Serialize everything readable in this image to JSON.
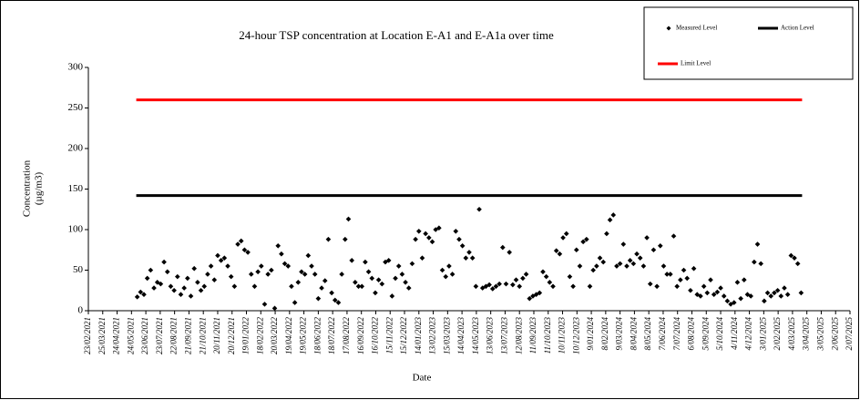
{
  "chart_data": {
    "type": "scatter",
    "title": "24-hour TSP concentration at Location E-A1 and E-A1a over time",
    "xlabel": "Date",
    "ylabel": [
      "Concentration",
      "(µg/m3)"
    ],
    "xlim": [
      "2021-02-23",
      "2025-07-02"
    ],
    "ylim": [
      0,
      300
    ],
    "yticks": [
      0,
      50,
      100,
      150,
      200,
      250,
      300
    ],
    "xticks": [
      {
        "value": "2021-02-23",
        "label": "23/02/2021"
      },
      {
        "value": "2021-03-25",
        "label": "25/03/2021"
      },
      {
        "value": "2021-04-24",
        "label": "24/04/2021"
      },
      {
        "value": "2021-05-24",
        "label": "24/05/2021"
      },
      {
        "value": "2021-06-23",
        "label": "23/06/2021"
      },
      {
        "value": "2021-07-23",
        "label": "23/07/2021"
      },
      {
        "value": "2021-08-22",
        "label": "22/08/2021"
      },
      {
        "value": "2021-09-21",
        "label": "21/09/2021"
      },
      {
        "value": "2021-10-21",
        "label": "21/10/2021"
      },
      {
        "value": "2021-11-20",
        "label": "20/11/2021"
      },
      {
        "value": "2021-12-20",
        "label": "20/12/2021"
      },
      {
        "value": "2022-01-19",
        "label": "19/01/2022"
      },
      {
        "value": "2022-02-18",
        "label": "18/02/2022"
      },
      {
        "value": "2022-03-20",
        "label": "20/03/2022"
      },
      {
        "value": "2022-04-19",
        "label": "19/04/2022"
      },
      {
        "value": "2022-05-19",
        "label": "19/05/2022"
      },
      {
        "value": "2022-06-18",
        "label": "18/06/2022"
      },
      {
        "value": "2022-07-18",
        "label": "18/07/2022"
      },
      {
        "value": "2022-08-17",
        "label": "17/08/2022"
      },
      {
        "value": "2022-09-16",
        "label": "16/09/2022"
      },
      {
        "value": "2022-10-16",
        "label": "16/10/2022"
      },
      {
        "value": "2022-11-15",
        "label": "15/11/2022"
      },
      {
        "value": "2022-12-15",
        "label": "15/12/2022"
      },
      {
        "value": "2023-01-14",
        "label": "14/01/2023"
      },
      {
        "value": "2023-02-13",
        "label": "13/02/2023"
      },
      {
        "value": "2023-03-15",
        "label": "15/03/2023"
      },
      {
        "value": "2023-04-14",
        "label": "14/04/2023"
      },
      {
        "value": "2023-05-14",
        "label": "14/05/2023"
      },
      {
        "value": "2023-06-13",
        "label": "13/06/2023"
      },
      {
        "value": "2023-07-13",
        "label": "13/07/2023"
      },
      {
        "value": "2023-08-12",
        "label": "12/08/2023"
      },
      {
        "value": "2023-09-11",
        "label": "11/09/2023"
      },
      {
        "value": "2023-10-11",
        "label": "11/10/2023"
      },
      {
        "value": "2023-11-10",
        "label": "10/11/2023"
      },
      {
        "value": "2023-12-10",
        "label": "10/12/2023"
      },
      {
        "value": "2024-01-09",
        "label": "9/01/2024"
      },
      {
        "value": "2024-02-08",
        "label": "8/02/2024"
      },
      {
        "value": "2024-03-09",
        "label": "9/03/2024"
      },
      {
        "value": "2024-04-08",
        "label": "8/04/2024"
      },
      {
        "value": "2024-05-08",
        "label": "8/05/2024"
      },
      {
        "value": "2024-06-07",
        "label": "7/06/2024"
      },
      {
        "value": "2024-07-07",
        "label": "7/07/2024"
      },
      {
        "value": "2024-08-06",
        "label": "6/08/2024"
      },
      {
        "value": "2024-09-05",
        "label": "5/09/2024"
      },
      {
        "value": "2024-10-05",
        "label": "5/10/2024"
      },
      {
        "value": "2024-11-04",
        "label": "4/11/2024"
      },
      {
        "value": "2024-12-04",
        "label": "4/12/2024"
      },
      {
        "value": "2025-01-03",
        "label": "3/01/2025"
      },
      {
        "value": "2025-02-02",
        "label": "2/02/2025"
      },
      {
        "value": "2025-03-04",
        "label": "4/03/2025"
      },
      {
        "value": "2025-04-03",
        "label": "3/04/2025"
      },
      {
        "value": "2025-05-03",
        "label": "3/05/2025"
      },
      {
        "value": "2025-06-02",
        "label": "2/06/2025"
      },
      {
        "value": "2025-07-02",
        "label": "2/07/2025"
      }
    ],
    "series": [
      {
        "name": "Measured Level",
        "style": "marker",
        "color": "#000000",
        "x": [
          "2021-06-05",
          "2021-06-12",
          "2021-06-19",
          "2021-06-26",
          "2021-07-03",
          "2021-07-10",
          "2021-07-17",
          "2021-07-24",
          "2021-07-31",
          "2021-08-07",
          "2021-08-14",
          "2021-08-21",
          "2021-08-28",
          "2021-09-04",
          "2021-09-11",
          "2021-09-18",
          "2021-09-25",
          "2021-10-02",
          "2021-10-09",
          "2021-10-16",
          "2021-10-23",
          "2021-10-30",
          "2021-11-06",
          "2021-11-13",
          "2021-11-20",
          "2021-11-27",
          "2021-12-04",
          "2021-12-11",
          "2021-12-18",
          "2021-12-25",
          "2022-01-01",
          "2022-01-08",
          "2022-01-15",
          "2022-01-22",
          "2022-01-29",
          "2022-02-05",
          "2022-02-12",
          "2022-02-19",
          "2022-02-26",
          "2022-03-05",
          "2022-03-12",
          "2022-03-19",
          "2022-03-26",
          "2022-04-02",
          "2022-04-09",
          "2022-04-16",
          "2022-04-23",
          "2022-04-30",
          "2022-05-07",
          "2022-05-14",
          "2022-05-21",
          "2022-05-28",
          "2022-06-04",
          "2022-06-11",
          "2022-06-18",
          "2022-06-25",
          "2022-07-02",
          "2022-07-09",
          "2022-07-16",
          "2022-07-23",
          "2022-07-30",
          "2022-08-06",
          "2022-08-13",
          "2022-08-20",
          "2022-08-27",
          "2022-09-03",
          "2022-09-10",
          "2022-09-17",
          "2022-09-24",
          "2022-10-01",
          "2022-10-08",
          "2022-10-15",
          "2022-10-22",
          "2022-10-29",
          "2022-11-05",
          "2022-11-12",
          "2022-11-19",
          "2022-11-26",
          "2022-12-03",
          "2022-12-10",
          "2022-12-17",
          "2022-12-24",
          "2022-12-31",
          "2023-01-07",
          "2023-01-14",
          "2023-01-21",
          "2023-01-28",
          "2023-02-04",
          "2023-02-11",
          "2023-02-18",
          "2023-02-25",
          "2023-03-04",
          "2023-03-11",
          "2023-03-18",
          "2023-03-25",
          "2023-04-01",
          "2023-04-08",
          "2023-04-15",
          "2023-04-22",
          "2023-04-29",
          "2023-05-06",
          "2023-05-13",
          "2023-05-20",
          "2023-05-27",
          "2023-06-03",
          "2023-06-10",
          "2023-06-17",
          "2023-06-24",
          "2023-07-01",
          "2023-07-08",
          "2023-07-15",
          "2023-07-22",
          "2023-07-29",
          "2023-08-05",
          "2023-08-12",
          "2023-08-19",
          "2023-08-26",
          "2023-09-02",
          "2023-09-09",
          "2023-09-16",
          "2023-09-23",
          "2023-09-30",
          "2023-10-07",
          "2023-10-14",
          "2023-10-21",
          "2023-10-28",
          "2023-11-04",
          "2023-11-11",
          "2023-11-18",
          "2023-11-25",
          "2023-12-02",
          "2023-12-09",
          "2023-12-16",
          "2023-12-23",
          "2023-12-30",
          "2024-01-06",
          "2024-01-13",
          "2024-01-20",
          "2024-01-27",
          "2024-02-03",
          "2024-02-10",
          "2024-02-17",
          "2024-02-24",
          "2024-03-02",
          "2024-03-09",
          "2024-03-16",
          "2024-03-23",
          "2024-03-30",
          "2024-04-06",
          "2024-04-13",
          "2024-04-20",
          "2024-04-27",
          "2024-05-04",
          "2024-05-11",
          "2024-05-18",
          "2024-05-25",
          "2024-06-01",
          "2024-06-08",
          "2024-06-15",
          "2024-06-22",
          "2024-06-29",
          "2024-07-06",
          "2024-07-13",
          "2024-07-20",
          "2024-07-27",
          "2024-08-03",
          "2024-08-10",
          "2024-08-17",
          "2024-08-24",
          "2024-08-31",
          "2024-09-07",
          "2024-09-14",
          "2024-09-21",
          "2024-09-28",
          "2024-10-05",
          "2024-10-12",
          "2024-10-19",
          "2024-10-26",
          "2024-11-02",
          "2024-11-09",
          "2024-11-16",
          "2024-11-23",
          "2024-11-30",
          "2024-12-07",
          "2024-12-14",
          "2024-12-21",
          "2024-12-28",
          "2025-01-04",
          "2025-01-11",
          "2025-01-18",
          "2025-01-25",
          "2025-02-01",
          "2025-02-08",
          "2025-02-15",
          "2025-02-22",
          "2025-03-01",
          "2025-03-08",
          "2025-03-15",
          "2025-03-22"
        ],
        "values": [
          17,
          23,
          20,
          40,
          50,
          28,
          35,
          33,
          60,
          48,
          30,
          25,
          42,
          20,
          28,
          40,
          18,
          52,
          35,
          25,
          30,
          45,
          55,
          38,
          68,
          62,
          65,
          55,
          42,
          30,
          82,
          86,
          75,
          72,
          45,
          30,
          48,
          55,
          8,
          45,
          50,
          3,
          80,
          70,
          58,
          55,
          30,
          10,
          35,
          48,
          45,
          68,
          55,
          45,
          15,
          28,
          37,
          88,
          22,
          13,
          10,
          45,
          88,
          113,
          62,
          35,
          30,
          30,
          60,
          48,
          40,
          22,
          38,
          33,
          60,
          62,
          18,
          40,
          55,
          45,
          35,
          28,
          58,
          88,
          98,
          65,
          95,
          90,
          85,
          100,
          102,
          50,
          42,
          55,
          45,
          98,
          88,
          80,
          65,
          72,
          65,
          30,
          125,
          28,
          30,
          32,
          27,
          30,
          33,
          78,
          33,
          72,
          32,
          38,
          30,
          40,
          45,
          15,
          18,
          20,
          22,
          48,
          42,
          35,
          30,
          74,
          70,
          90,
          95,
          42,
          30,
          75,
          55,
          85,
          88,
          30,
          50,
          55,
          65,
          60,
          95,
          112,
          118,
          55,
          58,
          82,
          55,
          62,
          58,
          70,
          65,
          55,
          90,
          33,
          75,
          30,
          80,
          55,
          45,
          45,
          92,
          30,
          38,
          50,
          40,
          25,
          52,
          20,
          18,
          30,
          22,
          38,
          20,
          23,
          28,
          18,
          12,
          8,
          10,
          35,
          15,
          38,
          20,
          18,
          60,
          82,
          58,
          12,
          22,
          18,
          22,
          25,
          18,
          28,
          20,
          68,
          65,
          58,
          22
        ]
      },
      {
        "name": "Action Level",
        "style": "line",
        "color": "#000000",
        "x": [
          "2021-06-03",
          "2025-03-24"
        ],
        "values": [
          142,
          142
        ]
      },
      {
        "name": "Limit Level",
        "style": "line",
        "color": "#ff0000",
        "x": [
          "2021-06-03",
          "2025-03-24"
        ],
        "values": [
          260,
          260
        ]
      }
    ]
  }
}
